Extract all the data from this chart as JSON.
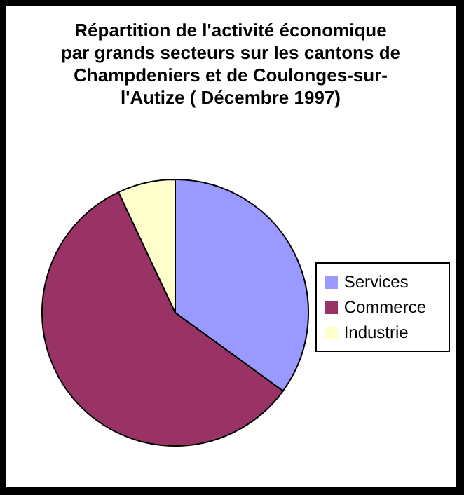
{
  "chart_data": {
    "type": "pie",
    "title": "Répartition de l'activité économique\npar grands secteurs sur les cantons de\nChampdeniers et de Coulonges-sur-\nl'Autize ( Décembre 1997)",
    "categories": [
      "Services",
      "Commerce",
      "Industrie"
    ],
    "values": [
      35,
      58,
      7
    ],
    "colors": [
      "#9999ff",
      "#993366",
      "#ffffcc"
    ],
    "legend": "right"
  }
}
